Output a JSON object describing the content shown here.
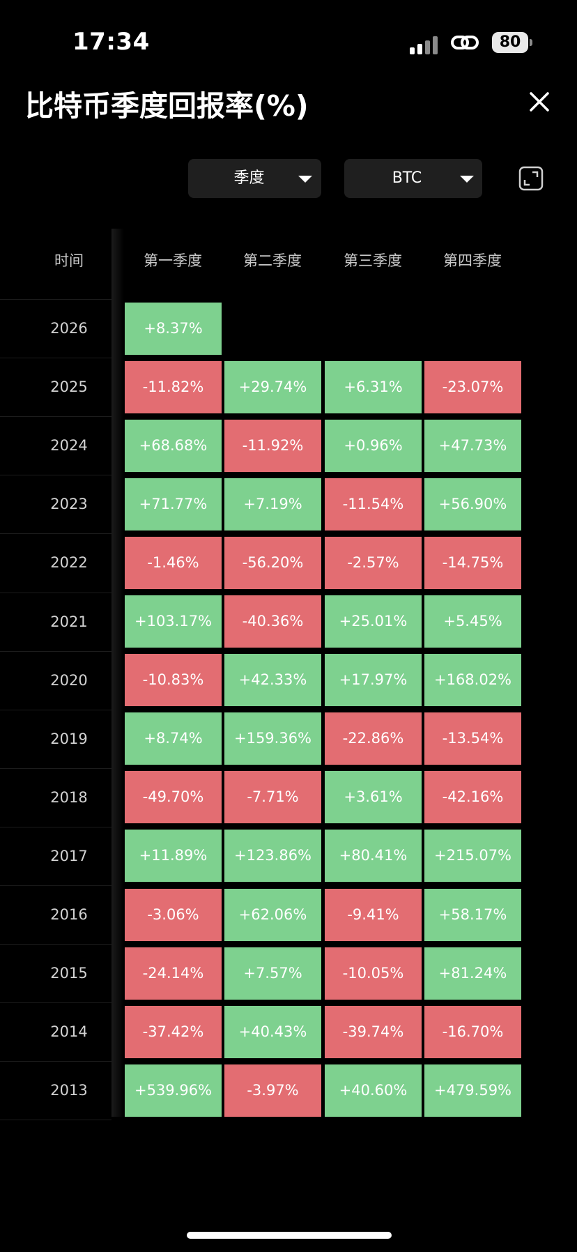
{
  "status_bar": {
    "time": "17:34",
    "battery": "80"
  },
  "header": {
    "title": "比特币季度回报率(%)"
  },
  "filters": {
    "period": "季度",
    "asset": "BTC"
  },
  "colors": {
    "positive": "#7ed18f",
    "negative": "#e36d72",
    "background": "#000000"
  },
  "chart_data": {
    "type": "heatmap",
    "title": "比特币季度回报率(%)",
    "row_header": "时间",
    "columns": [
      "第一季度",
      "第二季度",
      "第三季度",
      "第四季度"
    ],
    "rows": [
      {
        "year": "2026",
        "values": [
          "+8.37%",
          null,
          null,
          null
        ]
      },
      {
        "year": "2025",
        "values": [
          "-11.82%",
          "+29.74%",
          "+6.31%",
          "-23.07%"
        ]
      },
      {
        "year": "2024",
        "values": [
          "+68.68%",
          "-11.92%",
          "+0.96%",
          "+47.73%"
        ]
      },
      {
        "year": "2023",
        "values": [
          "+71.77%",
          "+7.19%",
          "-11.54%",
          "+56.90%"
        ]
      },
      {
        "year": "2022",
        "values": [
          "-1.46%",
          "-56.20%",
          "-2.57%",
          "-14.75%"
        ]
      },
      {
        "year": "2021",
        "values": [
          "+103.17%",
          "-40.36%",
          "+25.01%",
          "+5.45%"
        ]
      },
      {
        "year": "2020",
        "values": [
          "-10.83%",
          "+42.33%",
          "+17.97%",
          "+168.02%"
        ]
      },
      {
        "year": "2019",
        "values": [
          "+8.74%",
          "+159.36%",
          "-22.86%",
          "-13.54%"
        ]
      },
      {
        "year": "2018",
        "values": [
          "-49.70%",
          "-7.71%",
          "+3.61%",
          "-42.16%"
        ]
      },
      {
        "year": "2017",
        "values": [
          "+11.89%",
          "+123.86%",
          "+80.41%",
          "+215.07%"
        ]
      },
      {
        "year": "2016",
        "values": [
          "-3.06%",
          "+62.06%",
          "-9.41%",
          "+58.17%"
        ]
      },
      {
        "year": "2015",
        "values": [
          "-24.14%",
          "+7.57%",
          "-10.05%",
          "+81.24%"
        ]
      },
      {
        "year": "2014",
        "values": [
          "-37.42%",
          "+40.43%",
          "-39.74%",
          "-16.70%"
        ]
      },
      {
        "year": "2013",
        "values": [
          "+539.96%",
          "-3.97%",
          "+40.60%",
          "+479.59%"
        ]
      }
    ]
  }
}
